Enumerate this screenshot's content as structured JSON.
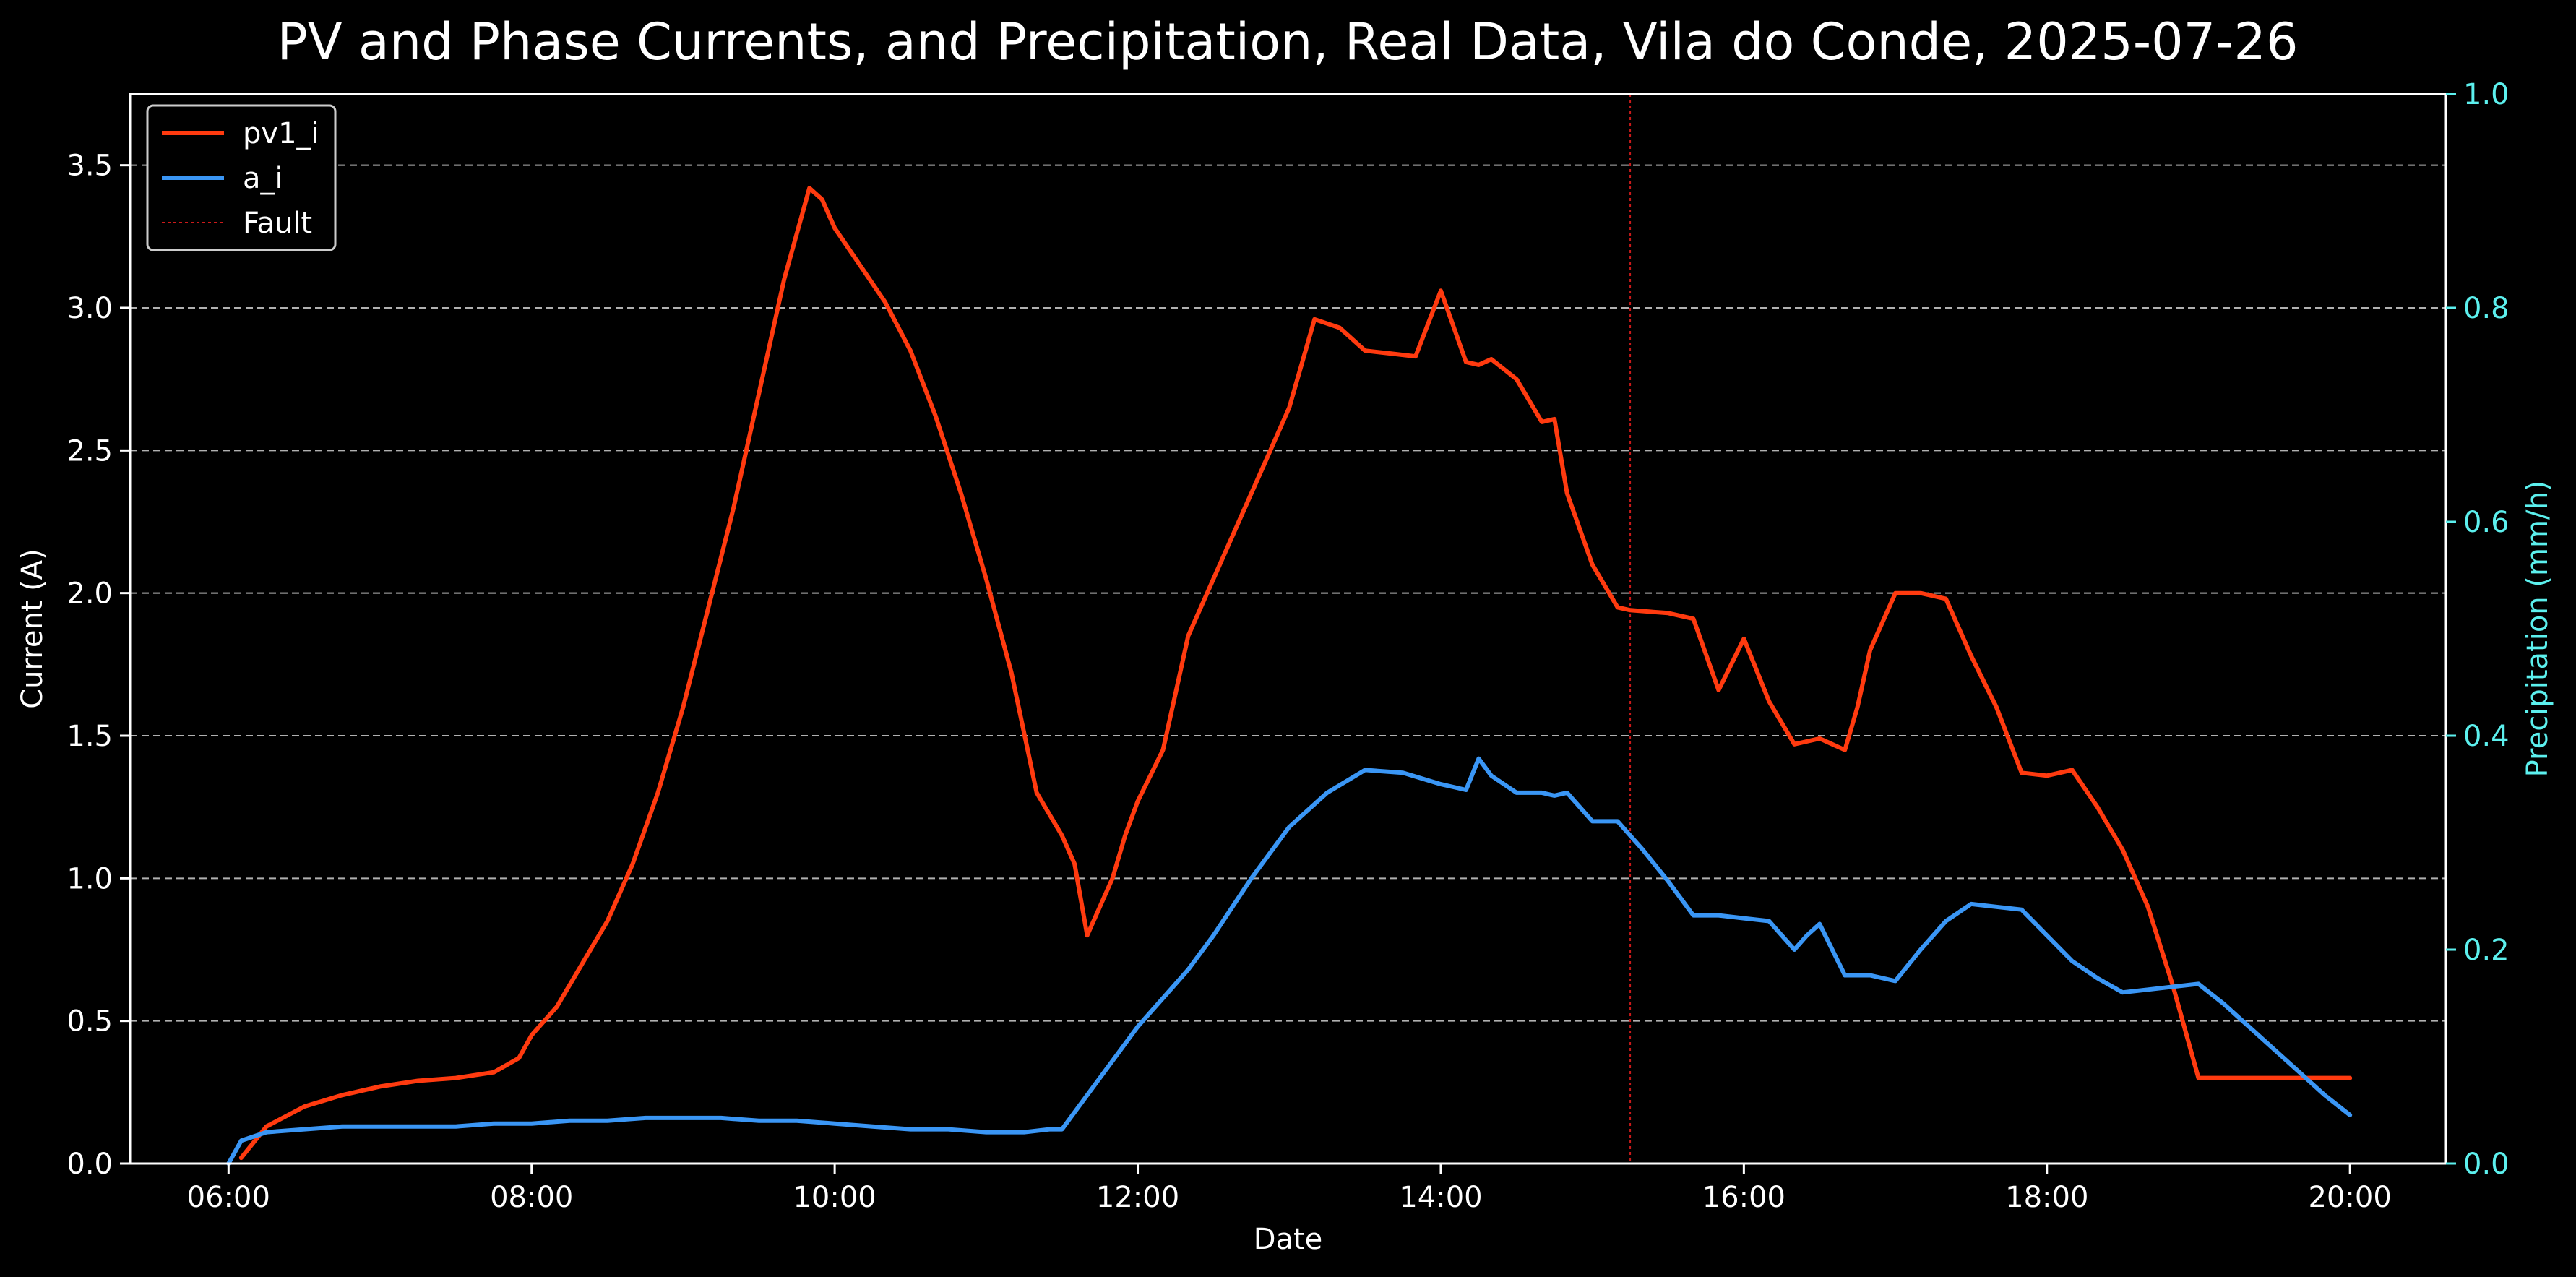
{
  "chart_data": {
    "type": "line",
    "title": "PV and Phase Currents, and Precipitation, Real Data, Vila do Conde, 2025-07-26",
    "xlabel": "Date",
    "ylabel": "Current (A)",
    "y2label": "Precipitation (mm/h)",
    "xlim": [
      "05:21",
      "20:38"
    ],
    "xticks": [
      "06:00",
      "08:00",
      "10:00",
      "12:00",
      "14:00",
      "16:00",
      "18:00",
      "20:00"
    ],
    "ylim": [
      0,
      3.75
    ],
    "yticks": [
      "0.0",
      "0.5",
      "1.0",
      "1.5",
      "2.0",
      "2.5",
      "3.0",
      "3.5"
    ],
    "y2lim": [
      0,
      1.0
    ],
    "y2ticks": [
      "0.0",
      "0.2",
      "0.4",
      "0.6",
      "0.8",
      "1.0"
    ],
    "grid": "horizontal dashed",
    "legend_position": "upper left",
    "colors": {
      "background": "#000000",
      "text": "#ffffff",
      "right_axis": "#5cf0ee",
      "grid": "#b0b0b0"
    },
    "fault_time": "15:15",
    "fault_color": "#cc1a1a",
    "series": [
      {
        "name": "pv1_i",
        "color": "#ff3a0f",
        "x": [
          "06:05",
          "06:15",
          "06:30",
          "06:45",
          "07:00",
          "07:15",
          "07:30",
          "07:45",
          "07:55",
          "08:00",
          "08:10",
          "08:20",
          "08:30",
          "08:40",
          "08:50",
          "09:00",
          "09:10",
          "09:20",
          "09:30",
          "09:40",
          "09:50",
          "09:55",
          "10:00",
          "10:10",
          "10:20",
          "10:30",
          "10:40",
          "10:50",
          "11:00",
          "11:10",
          "11:20",
          "11:30",
          "11:35",
          "11:40",
          "11:50",
          "11:55",
          "12:00",
          "12:10",
          "12:15",
          "12:20",
          "12:30",
          "12:40",
          "12:50",
          "13:00",
          "13:10",
          "13:20",
          "13:30",
          "13:40",
          "13:50",
          "14:00",
          "14:10",
          "14:15",
          "14:20",
          "14:30",
          "14:40",
          "14:45",
          "14:50",
          "15:00",
          "15:10",
          "15:15",
          "15:30",
          "15:40",
          "15:50",
          "16:00",
          "16:10",
          "16:20",
          "16:30",
          "16:40",
          "16:45",
          "16:50",
          "17:00",
          "17:10",
          "17:20",
          "17:30",
          "17:40",
          "17:50",
          "18:00",
          "18:10",
          "18:20",
          "18:30",
          "18:40",
          "18:50",
          "19:00",
          "19:10",
          "19:20",
          "19:30",
          "19:40",
          "19:50",
          "20:00"
        ],
        "values": [
          0.02,
          0.13,
          0.2,
          0.24,
          0.27,
          0.29,
          0.3,
          0.32,
          0.37,
          0.45,
          0.55,
          0.7,
          0.85,
          1.05,
          1.3,
          1.6,
          1.95,
          2.3,
          2.7,
          3.1,
          3.42,
          3.38,
          3.28,
          3.15,
          3.02,
          2.85,
          2.62,
          2.35,
          2.05,
          1.72,
          1.3,
          1.15,
          1.05,
          0.8,
          1.0,
          1.15,
          1.27,
          1.45,
          1.65,
          1.85,
          2.05,
          2.25,
          2.45,
          2.65,
          2.96,
          2.93,
          2.85,
          2.84,
          2.83,
          3.06,
          2.81,
          2.8,
          2.82,
          2.75,
          2.6,
          2.61,
          2.35,
          2.1,
          1.95,
          1.94,
          1.93,
          1.91,
          1.66,
          1.84,
          1.62,
          1.47,
          1.49,
          1.45,
          1.6,
          1.8,
          2.0,
          2.0,
          1.98,
          1.78,
          1.6,
          1.37,
          1.36,
          1.38,
          1.25,
          1.1,
          0.9,
          0.62,
          0.3,
          0.3,
          0.3,
          0.3,
          0.3,
          0.3,
          0.3
        ]
      },
      {
        "name": "a_i",
        "color": "#3a96f5",
        "x": [
          "06:00",
          "06:05",
          "06:15",
          "06:30",
          "06:45",
          "07:00",
          "07:15",
          "07:30",
          "07:45",
          "08:00",
          "08:15",
          "08:30",
          "08:45",
          "09:00",
          "09:15",
          "09:30",
          "09:45",
          "10:00",
          "10:15",
          "10:30",
          "10:45",
          "11:00",
          "11:15",
          "11:25",
          "11:30",
          "11:45",
          "12:00",
          "12:10",
          "12:20",
          "12:30",
          "12:45",
          "13:00",
          "13:15",
          "13:30",
          "13:45",
          "14:00",
          "14:05",
          "14:10",
          "14:15",
          "14:20",
          "14:30",
          "14:40",
          "14:45",
          "14:50",
          "15:00",
          "15:05",
          "15:10",
          "15:20",
          "15:30",
          "15:40",
          "15:50",
          "16:00",
          "16:10",
          "16:20",
          "16:25",
          "16:30",
          "16:40",
          "16:50",
          "17:00",
          "17:10",
          "17:20",
          "17:30",
          "17:40",
          "17:50",
          "18:00",
          "18:10",
          "18:20",
          "18:30",
          "18:40",
          "18:50",
          "19:00",
          "19:10",
          "19:20",
          "19:30",
          "19:40",
          "19:50",
          "20:00"
        ],
        "values": [
          0.0,
          0.08,
          0.11,
          0.12,
          0.13,
          0.13,
          0.13,
          0.13,
          0.14,
          0.14,
          0.15,
          0.15,
          0.16,
          0.16,
          0.16,
          0.15,
          0.15,
          0.14,
          0.13,
          0.12,
          0.12,
          0.11,
          0.11,
          0.12,
          0.12,
          0.3,
          0.48,
          0.58,
          0.68,
          0.8,
          1.0,
          1.18,
          1.3,
          1.38,
          1.37,
          1.33,
          1.32,
          1.31,
          1.42,
          1.36,
          1.3,
          1.3,
          1.29,
          1.3,
          1.2,
          1.2,
          1.2,
          1.1,
          0.99,
          0.87,
          0.87,
          0.86,
          0.85,
          0.75,
          0.8,
          0.84,
          0.66,
          0.66,
          0.64,
          0.75,
          0.85,
          0.91,
          0.9,
          0.89,
          0.8,
          0.71,
          0.65,
          0.6,
          0.61,
          0.62,
          0.63,
          0.56,
          0.48,
          0.4,
          0.32,
          0.24,
          0.17
        ]
      }
    ],
    "legend": [
      {
        "label": "pv1_i",
        "style": "solid",
        "color": "#ff3a0f"
      },
      {
        "label": "a_i",
        "style": "solid",
        "color": "#3a96f5"
      },
      {
        "label": "Fault",
        "style": "dotted",
        "color": "#cc1a1a"
      }
    ]
  }
}
